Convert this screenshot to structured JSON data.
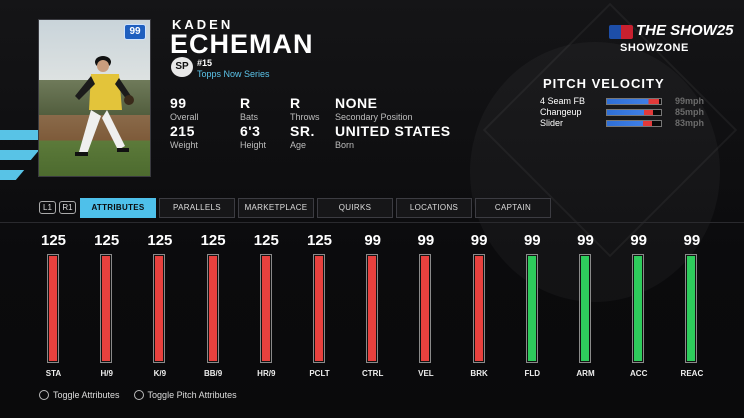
{
  "player": {
    "first_name": "KADEN",
    "last_name": "ECHEMAN",
    "overall_badge": "99",
    "position_badge": "SP",
    "jersey": "#15",
    "series": "Topps Now Series"
  },
  "bio": [
    {
      "value": "99",
      "label": "Overall"
    },
    {
      "value": "R",
      "label": "Bats"
    },
    {
      "value": "R",
      "label": "Throws"
    },
    {
      "value": "NONE",
      "label": "Secondary Position"
    },
    {
      "value": "215",
      "label": "Weight"
    },
    {
      "value": "6'3",
      "label": "Height"
    },
    {
      "value": "SR.",
      "label": "Age"
    },
    {
      "value": "UNITED STATES",
      "label": "Born"
    }
  ],
  "logo": {
    "title": "THE SHOW25",
    "subtitle": "SHOWZONE"
  },
  "pitch_velocity": {
    "title": "PITCH VELOCITY",
    "pitches": [
      {
        "name": "4 Seam FB",
        "value": "99mph",
        "fill": 0.97
      },
      {
        "name": "Changeup",
        "value": "85mph",
        "fill": 0.86
      },
      {
        "name": "Slider",
        "value": "83mph",
        "fill": 0.84
      }
    ]
  },
  "tab_hints": {
    "left": "L1",
    "right": "R1"
  },
  "tabs": [
    "ATTRIBUTES",
    "PARALLELS",
    "MARKETPLACE",
    "QUIRKS",
    "LOCATIONS",
    "CAPTAIN"
  ],
  "active_tab": 0,
  "attributes": [
    {
      "label": "STA",
      "value": "125",
      "fill": 1.0,
      "color": "#e8413e"
    },
    {
      "label": "H/9",
      "value": "125",
      "fill": 1.0,
      "color": "#e8413e"
    },
    {
      "label": "K/9",
      "value": "125",
      "fill": 1.0,
      "color": "#e8413e"
    },
    {
      "label": "BB/9",
      "value": "125",
      "fill": 1.0,
      "color": "#e8413e"
    },
    {
      "label": "HR/9",
      "value": "125",
      "fill": 1.0,
      "color": "#e8413e"
    },
    {
      "label": "PCLT",
      "value": "125",
      "fill": 1.0,
      "color": "#e8413e"
    },
    {
      "label": "CTRL",
      "value": "99",
      "fill": 1.0,
      "color": "#e8413e"
    },
    {
      "label": "VEL",
      "value": "99",
      "fill": 1.0,
      "color": "#e8413e"
    },
    {
      "label": "BRK",
      "value": "99",
      "fill": 1.0,
      "color": "#e8413e"
    },
    {
      "label": "FLD",
      "value": "99",
      "fill": 1.0,
      "color": "#2ecc5c"
    },
    {
      "label": "ARM",
      "value": "99",
      "fill": 1.0,
      "color": "#2ecc5c"
    },
    {
      "label": "ACC",
      "value": "99",
      "fill": 1.0,
      "color": "#2ecc5c"
    },
    {
      "label": "REAC",
      "value": "99",
      "fill": 1.0,
      "color": "#2ecc5c"
    }
  ],
  "footer": [
    {
      "label": "Toggle Attributes",
      "icon": "circle-button-icon"
    },
    {
      "label": "Toggle Pitch Attributes",
      "icon": "r3-button-icon"
    }
  ],
  "colors": {
    "accent": "#4ec0ea",
    "pitching": "#e8413e",
    "fielding": "#2ecc5c"
  }
}
